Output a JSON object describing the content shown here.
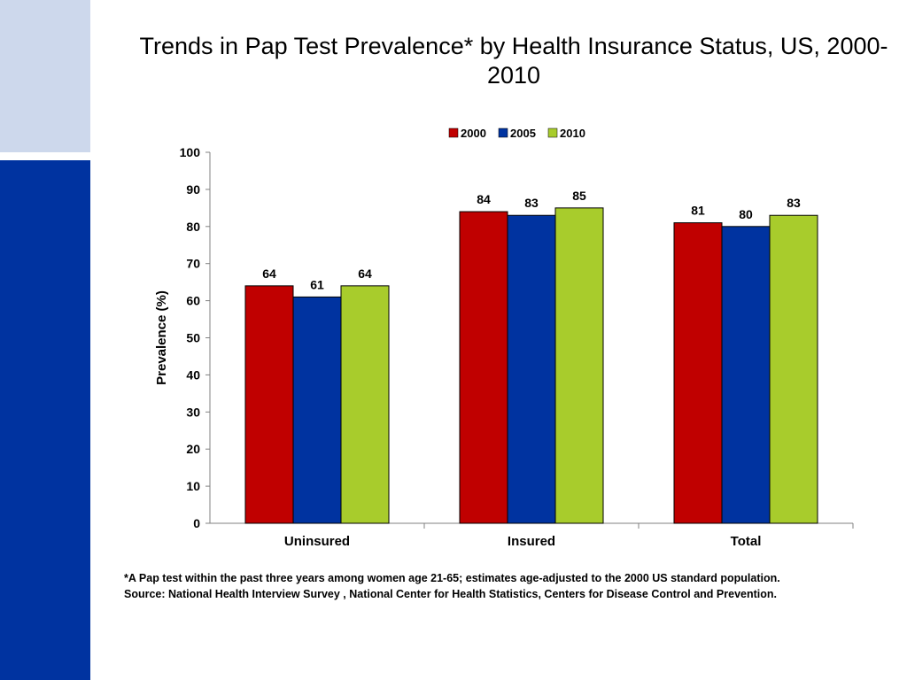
{
  "slide": {
    "title": "Trends in Pap Test Prevalence* by Health Insurance Status, US, 2000-2010",
    "footnote_line1": "*A Pap test within the past three years among women age 21-65; estimates age-adjusted to the 2000 US standard population.",
    "footnote_line2": "Source: National Health Interview Survey , National Center for Health Statistics, Centers for Disease Control and Prevention."
  },
  "colors": {
    "sidebar_light": "#cdd8ec",
    "sidebar_dark": "#0033a0"
  },
  "chart_data": {
    "type": "bar",
    "title": "Trends in Pap Test Prevalence* by Health Insurance Status, US, 2000-2010",
    "xlabel": "",
    "ylabel": "Prevalence (%)",
    "ylim": [
      0,
      100
    ],
    "yticks": [
      0,
      10,
      20,
      30,
      40,
      50,
      60,
      70,
      80,
      90,
      100
    ],
    "categories": [
      "Uninsured",
      "Insured",
      "Total"
    ],
    "legend_position": "top",
    "grid": false,
    "series": [
      {
        "name": "2000",
        "color": "#c00000",
        "values": [
          64,
          84,
          81
        ]
      },
      {
        "name": "2005",
        "color": "#0033a0",
        "values": [
          61,
          83,
          80
        ]
      },
      {
        "name": "2010",
        "color": "#a8cc2c",
        "values": [
          64,
          85,
          83
        ]
      }
    ],
    "data_labels": true
  }
}
